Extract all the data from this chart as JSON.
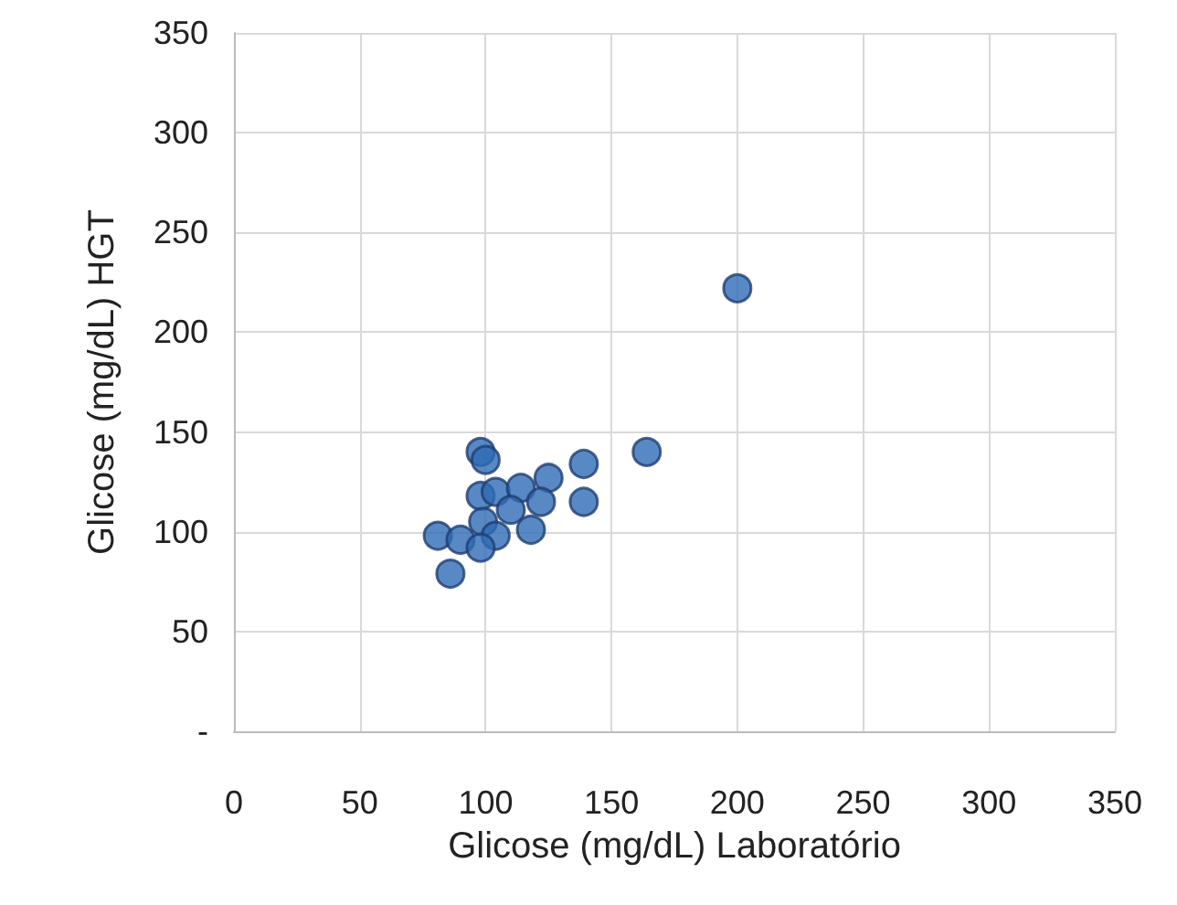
{
  "chart_data": {
    "type": "scatter",
    "xlabel": "Glicose (mg/dL) Laboratório",
    "ylabel": "Glicose (mg/dL) HGT",
    "x": [
      98,
      100,
      139,
      164,
      98,
      104,
      114,
      125,
      122,
      139,
      110,
      99,
      81,
      90,
      104,
      118,
      98,
      86,
      200
    ],
    "values": [
      140,
      136,
      134,
      140,
      118,
      120,
      122,
      127,
      115,
      115,
      111,
      105,
      98,
      96,
      98,
      101,
      92,
      79,
      222
    ],
    "color": "#2e6cb5",
    "marker": "circle",
    "xlim": [
      0,
      350
    ],
    "xticks": [
      0,
      50,
      100,
      150,
      200,
      250,
      300,
      350
    ],
    "ylim": [
      0,
      350
    ],
    "yticks": [
      {
        "value": 0,
        "label": "-"
      },
      50,
      100,
      150,
      200,
      250,
      300,
      350
    ],
    "grid": true
  }
}
